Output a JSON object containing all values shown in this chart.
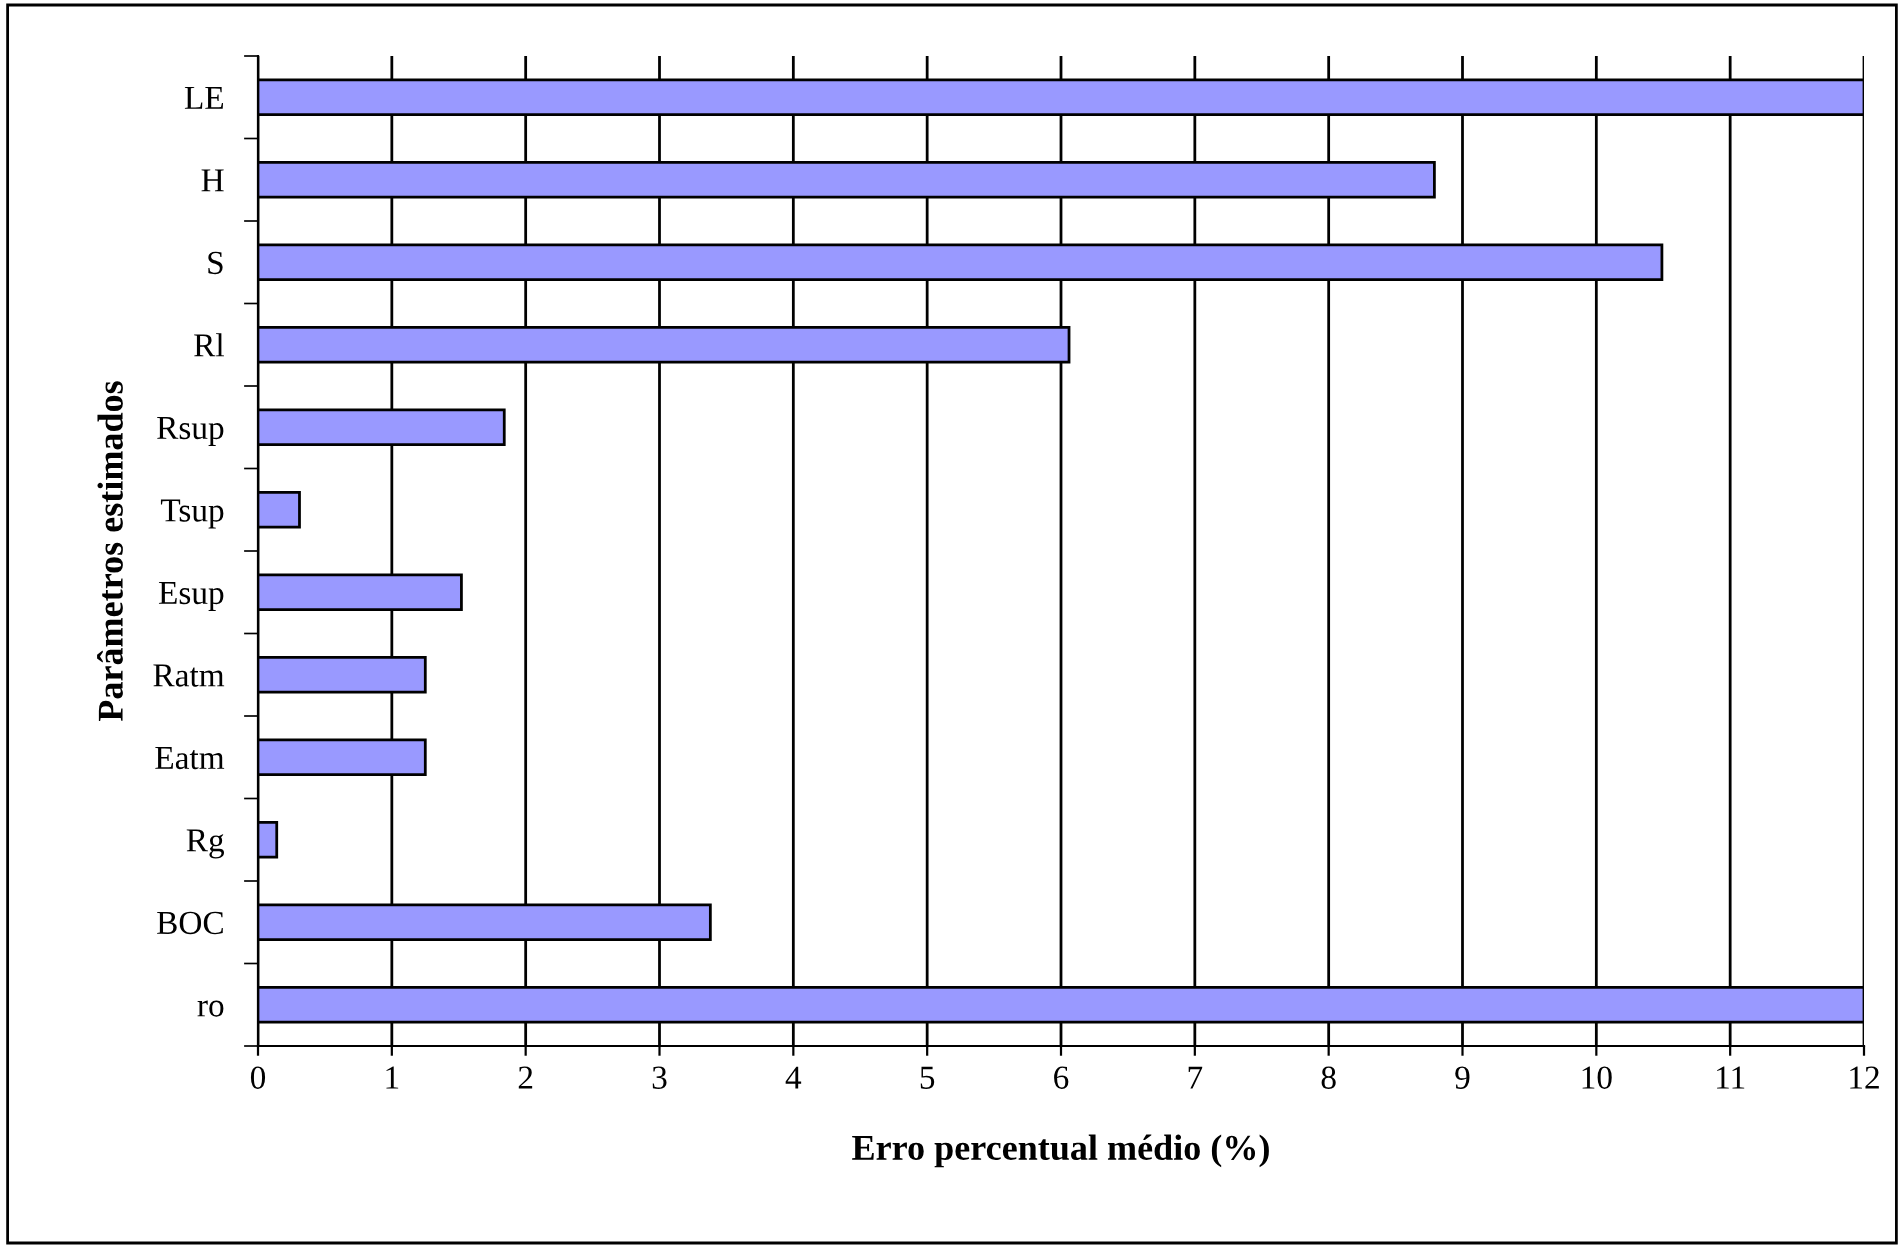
{
  "chart_data": {
    "type": "bar",
    "orientation": "horizontal",
    "xlabel": "Erro percentual médio (%)",
    "ylabel": "Parâmetros estimados",
    "categories": [
      "LE",
      "H",
      "S",
      "Rl",
      "Rsup",
      "Tsup",
      "Esup",
      "Ratm",
      "Eatm",
      "Rg",
      "BOC",
      "ro"
    ],
    "values": [
      12,
      8.79,
      10.49,
      6.06,
      1.84,
      0.31,
      1.52,
      1.25,
      1.25,
      0.14,
      3.38,
      12
    ],
    "color": "#9999ff",
    "xlim": [
      0,
      12
    ],
    "xticks": [
      0,
      1,
      2,
      3,
      4,
      5,
      6,
      7,
      8,
      9,
      10,
      11,
      12
    ],
    "grid": "x",
    "legend": false
  }
}
